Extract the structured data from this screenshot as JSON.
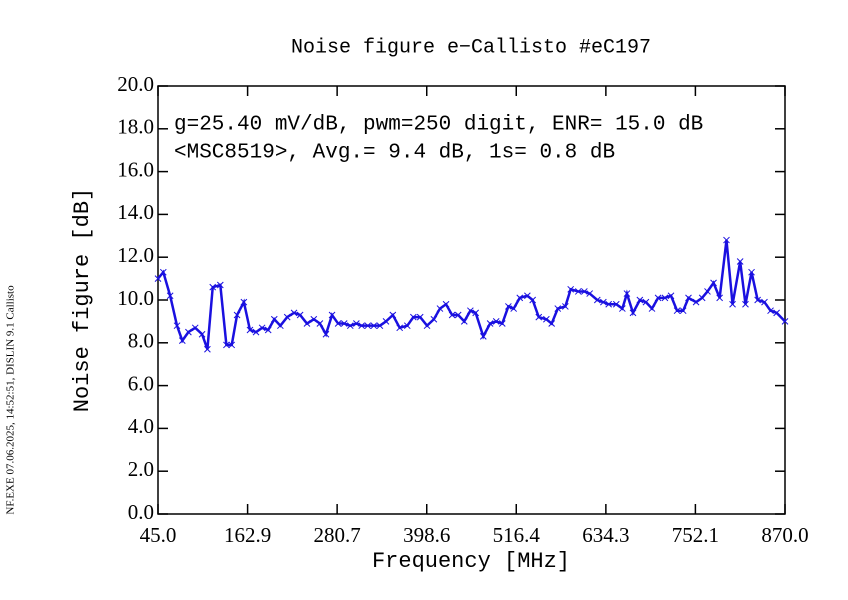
{
  "chart_data": {
    "type": "line",
    "title": "Noise figure e−Callisto #eC197",
    "annotations": [
      "g=25.40 mV/dB, pwm=250 digit, ENR= 15.0 dB",
      "<MSC8519>, Avg.= 9.4 dB, 1s= 0.8 dB"
    ],
    "side_note": "NF.EXE 07.06.2025, 14:52:51, DISLIN 9.1 Callisto",
    "xlabel": "Frequency [MHz]",
    "ylabel": "Noise figure [dB]",
    "x": [
      45,
      52,
      61,
      70,
      77,
      85,
      94,
      103,
      110,
      117,
      127,
      135,
      142,
      149,
      158,
      166,
      174,
      182,
      190,
      198,
      206,
      215,
      224,
      232,
      241,
      250,
      258,
      266,
      274,
      282,
      290,
      298,
      306,
      313,
      321,
      329,
      337,
      345,
      354,
      363,
      373,
      381,
      390,
      399,
      408,
      416,
      424,
      432,
      440,
      448,
      456,
      463,
      473,
      482,
      490,
      498,
      506,
      513,
      521,
      531,
      538,
      546,
      556,
      563,
      571,
      581,
      588,
      598,
      606,
      613,
      623,
      631,
      638,
      648,
      656,
      662,
      670,
      679,
      687,
      695,
      703,
      712,
      720,
      728,
      736,
      743,
      753,
      761,
      768,
      776,
      784,
      793,
      801,
      811,
      818,
      826,
      834,
      843,
      851,
      859,
      870
    ],
    "series": [
      {
        "name": "Noise figure",
        "color": "#1a10e0",
        "values": [
          11.0,
          11.3,
          10.2,
          8.8,
          8.1,
          8.5,
          8.7,
          8.4,
          7.7,
          10.6,
          10.7,
          7.9,
          7.9,
          9.3,
          9.9,
          8.6,
          8.5,
          8.7,
          8.6,
          9.1,
          8.8,
          9.2,
          9.4,
          9.3,
          8.9,
          9.1,
          8.9,
          8.4,
          9.3,
          8.9,
          8.9,
          8.8,
          8.9,
          8.8,
          8.8,
          8.8,
          8.8,
          9.0,
          9.3,
          8.7,
          8.8,
          9.2,
          9.2,
          8.8,
          9.1,
          9.6,
          9.8,
          9.3,
          9.3,
          9.0,
          9.5,
          9.4,
          8.3,
          8.9,
          9.0,
          8.9,
          9.7,
          9.6,
          10.1,
          10.2,
          10.0,
          9.2,
          9.1,
          8.9,
          9.6,
          9.7,
          10.5,
          10.4,
          10.4,
          10.3,
          10.0,
          9.9,
          9.8,
          9.8,
          9.6,
          10.3,
          9.4,
          10.0,
          9.9,
          9.6,
          10.1,
          10.1,
          10.2,
          9.5,
          9.5,
          10.1,
          9.9,
          10.1,
          10.4,
          10.8,
          10.1,
          12.8,
          9.8,
          11.8,
          9.8,
          11.3,
          10.0,
          9.9,
          9.5,
          9.4,
          9.0
        ]
      }
    ],
    "xlim": [
      45,
      870
    ],
    "xticks": [
      {
        "value": 45,
        "label": "45.0"
      },
      162.9,
      280.7,
      398.6,
      516.4,
      634.3,
      752.1,
      {
        "value": 870,
        "label": "870.0"
      }
    ],
    "ylim": [
      0,
      20
    ],
    "yticks": [
      {
        "value": 0,
        "label": "0.0"
      },
      {
        "value": 2,
        "label": "2.0"
      },
      {
        "value": 4,
        "label": "4.0"
      },
      {
        "value": 6,
        "label": "6.0"
      },
      {
        "value": 8,
        "label": "8.0"
      },
      {
        "value": 10,
        "label": "10.0"
      },
      {
        "value": 12,
        "label": "12.0"
      },
      {
        "value": 14,
        "label": "14.0"
      },
      {
        "value": 16,
        "label": "16.0"
      },
      {
        "value": 18,
        "label": "18.0"
      },
      {
        "value": 20,
        "label": "20.0"
      }
    ]
  }
}
